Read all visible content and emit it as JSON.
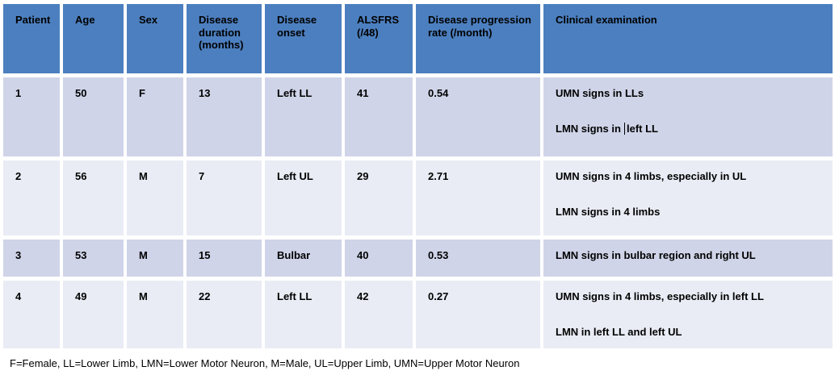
{
  "header": {
    "columns": [
      "Patient",
      "Age",
      "Sex",
      "Disease duration (months)",
      "Disease onset",
      "ALSFRS (/48)",
      "Disease progression rate (/month)",
      "Clinical examination"
    ]
  },
  "rows": [
    {
      "patient": "1",
      "age": "50",
      "sex": "F",
      "duration": "13",
      "onset": "Left LL",
      "alsfrs": "41",
      "progression": "0.54",
      "exam1": "UMN signs in LLs",
      "exam2_pre": "LMN signs in ",
      "exam2_post": "left LL"
    },
    {
      "patient": "2",
      "age": "56",
      "sex": "M",
      "duration": "7",
      "onset": "Left UL",
      "alsfrs": "29",
      "progression": "2.71",
      "exam1": "UMN signs in 4 limbs, especially in UL",
      "exam2": "LMN signs in 4 limbs"
    },
    {
      "patient": "3",
      "age": "53",
      "sex": "M",
      "duration": "15",
      "onset": "Bulbar",
      "alsfrs": "40",
      "progression": "0.53",
      "exam1": "LMN signs in bulbar region and right UL"
    },
    {
      "patient": "4",
      "age": "49",
      "sex": "M",
      "duration": "22",
      "onset": "Left LL",
      "alsfrs": "42",
      "progression": "0.27",
      "exam1": "UMN signs in 4 limbs, especially in left LL",
      "exam2": "LMN in left LL and left UL"
    }
  ],
  "footnote": "F=Female, LL=Lower Limb, LMN=Lower Motor Neuron, M=Male, UL=Upper Limb, UMN=Upper Motor Neuron",
  "colors": {
    "header_bg": "#4c7fbf",
    "row_odd_bg": "#cfd4e8",
    "row_even_bg": "#e9ecf4",
    "text": "#000000",
    "gap": "#ffffff"
  }
}
